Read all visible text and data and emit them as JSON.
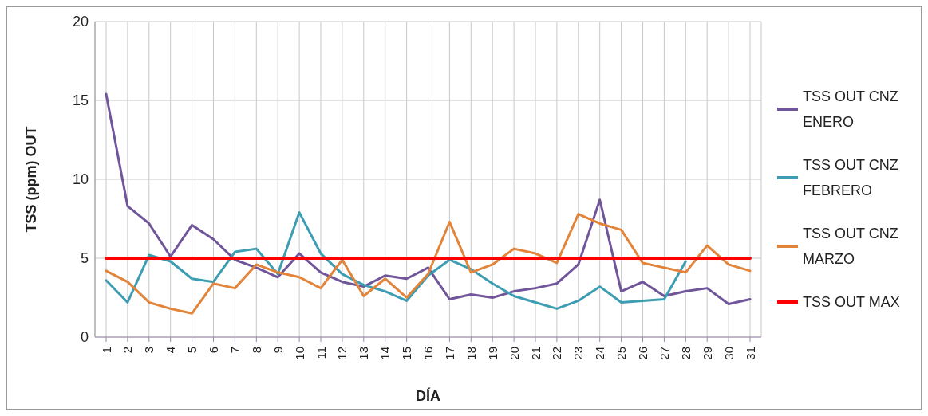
{
  "chart_data": {
    "type": "line",
    "xlabel": "DÍA",
    "ylabel": "TSS (ppm) OUT",
    "categories": [
      "1",
      "2",
      "3",
      "4",
      "5",
      "6",
      "7",
      "8",
      "9",
      "10",
      "11",
      "12",
      "13",
      "14",
      "15",
      "16",
      "17",
      "18",
      "19",
      "20",
      "21",
      "22",
      "23",
      "24",
      "25",
      "26",
      "27",
      "28",
      "29",
      "30",
      "31"
    ],
    "series": [
      {
        "name": "TSS OUT CNZ ENERO",
        "color": "#70559a",
        "values": [
          15.4,
          8.3,
          7.2,
          5.1,
          7.1,
          6.2,
          4.9,
          4.4,
          3.8,
          5.3,
          4.1,
          3.5,
          3.2,
          3.9,
          3.7,
          4.4,
          2.4,
          2.7,
          2.5,
          2.9,
          3.1,
          3.4,
          4.6,
          8.7,
          2.9,
          3.5,
          2.6,
          2.9,
          3.1,
          2.1,
          2.4
        ]
      },
      {
        "name": "TSS OUT CNZ FEBRERO",
        "color": "#3d9db3",
        "values": [
          3.6,
          2.2,
          5.2,
          4.8,
          3.7,
          3.5,
          5.4,
          5.6,
          4.0,
          7.9,
          5.3,
          4.0,
          3.3,
          2.9,
          2.3,
          3.9,
          4.9,
          4.3,
          3.4,
          2.6,
          2.2,
          1.8,
          2.3,
          3.2,
          2.2,
          2.3,
          2.4,
          4.8,
          null,
          null,
          null
        ]
      },
      {
        "name": "TSS OUT CNZ MARZO",
        "color": "#e2843a",
        "values": [
          4.2,
          3.5,
          2.2,
          1.8,
          1.5,
          3.4,
          3.1,
          4.6,
          4.1,
          3.8,
          3.1,
          4.9,
          2.6,
          3.7,
          2.5,
          4.0,
          7.3,
          4.1,
          4.6,
          5.6,
          5.3,
          4.7,
          7.8,
          7.2,
          6.8,
          4.7,
          4.4,
          4.1,
          5.8,
          4.6,
          4.2
        ]
      },
      {
        "name": "TSS OUT MAX",
        "color": "#ff0000",
        "values": [
          5,
          5,
          5,
          5,
          5,
          5,
          5,
          5,
          5,
          5,
          5,
          5,
          5,
          5,
          5,
          5,
          5,
          5,
          5,
          5,
          5,
          5,
          5,
          5,
          5,
          5,
          5,
          5,
          5,
          5,
          5
        ]
      }
    ],
    "ylim": [
      0,
      20
    ],
    "yticks": [
      0,
      5,
      10,
      15,
      20
    ],
    "grid": true,
    "legend": "right",
    "marker": "none",
    "line_style": "solid"
  }
}
